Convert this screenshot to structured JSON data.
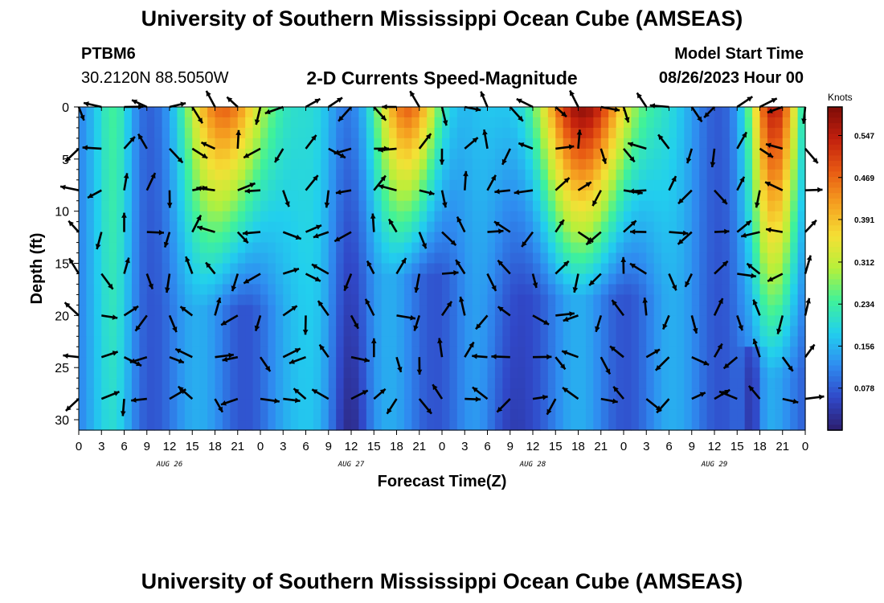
{
  "header": {
    "title": "University of Southern Mississippi Ocean Cube (AMSEAS)",
    "station": "PTBM6",
    "coords": "30.2120N  88.5050W",
    "model_start_label": "Model Start Time",
    "model_start_value": "08/26/2023 Hour 00"
  },
  "footer": {
    "title": "University of Southern Mississippi Ocean Cube (AMSEAS)"
  },
  "chart_data": {
    "type": "heatmap",
    "title": "2-D Currents Speed-Magnitude",
    "xlabel": "Forecast Time(Z)",
    "ylabel": "Depth (ft)",
    "x_tick_labels": [
      "0",
      "3",
      "6",
      "9",
      "12",
      "15",
      "18",
      "21",
      "0",
      "3",
      "6",
      "9",
      "12",
      "15",
      "18",
      "21",
      "0",
      "3",
      "6",
      "9",
      "12",
      "15",
      "18",
      "21",
      "0",
      "3",
      "6",
      "9",
      "12",
      "15",
      "18",
      "21",
      "0"
    ],
    "date_labels": [
      "AUG 26",
      "AUG 27",
      "AUG 28",
      "AUG 29"
    ],
    "y_ticks": [
      0,
      5,
      10,
      15,
      20,
      25,
      30
    ],
    "ylim": [
      0,
      31
    ],
    "y_inverted": true,
    "colorbar": {
      "unit": "Knots",
      "ticks": [
        "0.547",
        "0.469",
        "0.391",
        "0.312",
        "0.234",
        "0.156",
        "0.078"
      ],
      "range": [
        0,
        0.6
      ],
      "colors": [
        "#2c1e6e",
        "#3048c8",
        "#2f8cf0",
        "#22cfee",
        "#3ff29a",
        "#b6f03a",
        "#f5e035",
        "#f5a020",
        "#e85a13",
        "#c2200d",
        "#7e0c08"
      ]
    },
    "vector_depths_ft": [
      0,
      4,
      8,
      12,
      16,
      20,
      24,
      28
    ],
    "vector_times_hours": [
      0,
      3,
      6,
      9,
      12,
      15,
      18,
      21,
      24,
      27,
      30,
      33,
      36,
      39,
      42,
      45,
      48,
      51,
      54,
      57,
      60,
      63,
      66,
      69,
      72,
      75,
      78,
      81,
      84,
      87,
      90,
      93,
      96
    ]
  }
}
